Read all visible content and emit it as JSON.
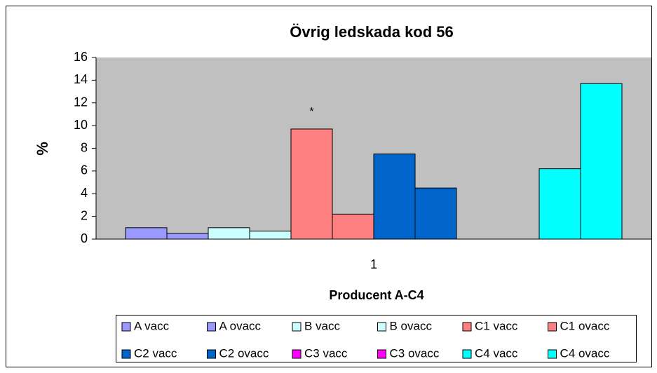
{
  "chart_data": {
    "type": "bar",
    "title": "Övrig ledskada kod 56",
    "y_label": "%",
    "x_label": "Producent A-C4",
    "annotation": "*",
    "categories": [
      "1"
    ],
    "series": [
      {
        "name": "A vacc",
        "color": "#9999ff",
        "values": [
          1.0
        ]
      },
      {
        "name": "A ovacc",
        "color": "#9999ff",
        "values": [
          0.5
        ]
      },
      {
        "name": "B vacc",
        "color": "#ccffff",
        "values": [
          1.0
        ]
      },
      {
        "name": "B ovacc",
        "color": "#ccffff",
        "values": [
          0.7
        ]
      },
      {
        "name": "C1 vacc",
        "color": "#ff8080",
        "values": [
          9.7
        ]
      },
      {
        "name": "C1 ovacc",
        "color": "#ff8080",
        "values": [
          2.2
        ]
      },
      {
        "name": "C2 vacc",
        "color": "#0066cc",
        "values": [
          7.5
        ]
      },
      {
        "name": "C2 ovacc",
        "color": "#0066cc",
        "values": [
          4.5
        ]
      },
      {
        "name": "C3 vacc",
        "color": "#ff00ff",
        "values": [
          0
        ]
      },
      {
        "name": "C3 ovacc",
        "color": "#ff00ff",
        "values": [
          0
        ]
      },
      {
        "name": "C4 vacc",
        "color": "#00ffff",
        "values": [
          6.2
        ]
      },
      {
        "name": "C4 ovacc",
        "color": "#00ffff",
        "values": [
          13.7
        ]
      }
    ],
    "ylim": [
      0,
      16
    ],
    "yticks": [
      0,
      2,
      4,
      6,
      8,
      10,
      12,
      14,
      16
    ],
    "grid": false,
    "plot_background": "#c0c0c0",
    "legend": "bottom"
  }
}
